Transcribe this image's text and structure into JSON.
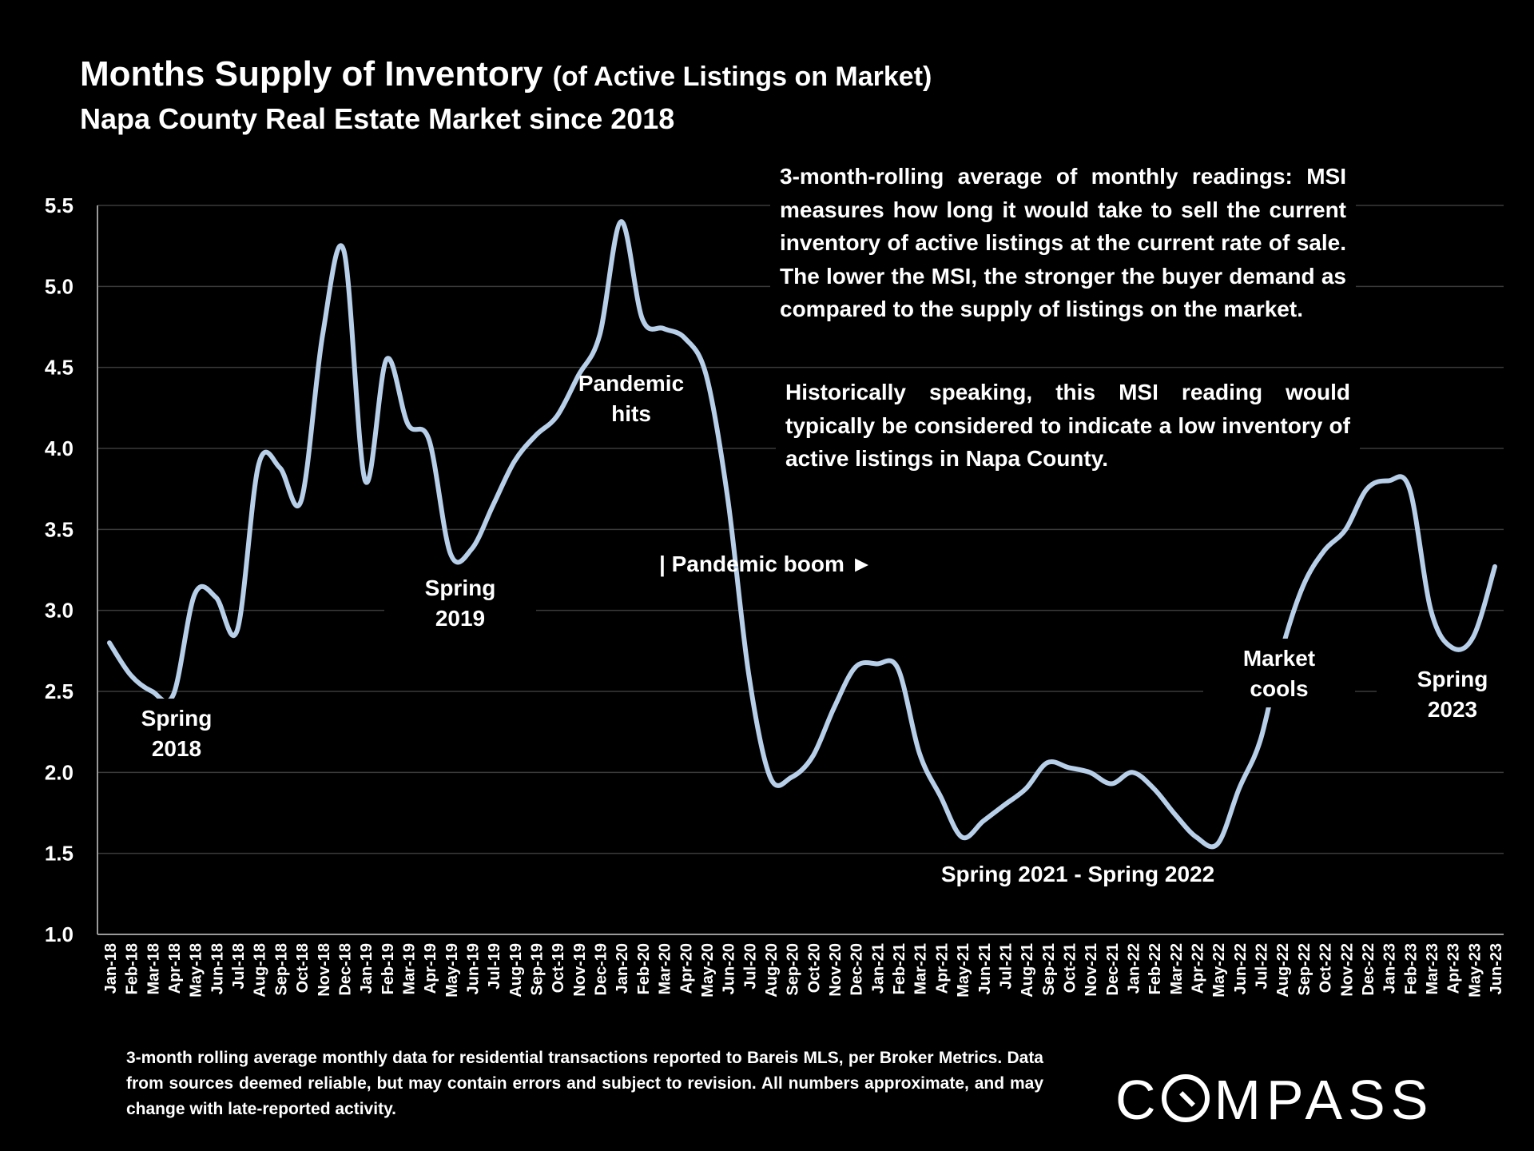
{
  "header": {
    "title_main": "Months Supply of Inventory",
    "title_paren": "(of Active Listings on Market)",
    "subtitle": "Napa County Real Estate Market since 2018"
  },
  "notes": {
    "note1": "3-month-rolling average of monthly readings: MSI measures how long it would take to sell the current inventory of active listings at the current rate of sale. The lower the MSI, the stronger the buyer demand as compared to the supply of listings on the market.",
    "note2": "Historically speaking, this MSI reading would typically be considered to indicate a low inventory of active listings in Napa County."
  },
  "footer": {
    "text": "3-month rolling average monthly data for residential transactions reported to Bareis MLS, per Broker Metrics. Data from sources deemed reliable, but may contain errors and subject to revision. All numbers approximate, and may change with late-reported activity.",
    "logo": "COMPASS"
  },
  "colors": {
    "line": "#b7cfe9",
    "grid": "#3a3a3a",
    "axis": "#9a9a9a",
    "background": "#000000"
  },
  "chart_data": {
    "type": "line",
    "title": "Months Supply of Inventory (of Active Listings on Market)",
    "subtitle": "Napa County Real Estate Market since 2018",
    "xlabel": "",
    "ylabel": "",
    "ylim": [
      1.0,
      5.5
    ],
    "yticks": [
      "1.0",
      "1.5",
      "2.0",
      "2.5",
      "3.0",
      "3.5",
      "4.0",
      "4.5",
      "5.0",
      "5.5"
    ],
    "grid": true,
    "categories": [
      "Jan-18",
      "Feb-18",
      "Mar-18",
      "Apr-18",
      "May-18",
      "Jun-18",
      "Jul-18",
      "Aug-18",
      "Sep-18",
      "Oct-18",
      "Nov-18",
      "Dec-18",
      "Jan-19",
      "Feb-19",
      "Mar-19",
      "Apr-19",
      "May-19",
      "Jun-19",
      "Jul-19",
      "Aug-19",
      "Sep-19",
      "Oct-19",
      "Nov-19",
      "Dec-19",
      "Jan-20",
      "Feb-20",
      "Mar-20",
      "Apr-20",
      "May-20",
      "Jun-20",
      "Jul-20",
      "Aug-20",
      "Sep-20",
      "Oct-20",
      "Nov-20",
      "Dec-20",
      "Jan-21",
      "Feb-21",
      "Mar-21",
      "Apr-21",
      "May-21",
      "Jun-21",
      "Jul-21",
      "Aug-21",
      "Sep-21",
      "Oct-21",
      "Nov-21",
      "Dec-21",
      "Jan-22",
      "Feb-22",
      "Mar-22",
      "Apr-22",
      "May-22",
      "Jun-22",
      "Jul-22",
      "Aug-22",
      "Sep-22",
      "Oct-22",
      "Nov-22",
      "Dec-22",
      "Jan-23",
      "Feb-23",
      "Mar-23",
      "Apr-23",
      "May-23",
      "Jun-23"
    ],
    "series": [
      {
        "name": "MSI (3-month rolling average)",
        "values": [
          2.8,
          2.6,
          2.5,
          2.48,
          3.1,
          3.08,
          2.88,
          3.9,
          3.88,
          3.68,
          4.7,
          5.22,
          3.8,
          4.55,
          4.15,
          4.05,
          3.35,
          3.38,
          3.65,
          3.92,
          4.08,
          4.2,
          4.45,
          4.7,
          5.4,
          4.8,
          4.74,
          4.68,
          4.45,
          3.7,
          2.6,
          1.97,
          1.97,
          2.1,
          2.4,
          2.65,
          2.67,
          2.64,
          2.12,
          1.85,
          1.6,
          1.7,
          1.8,
          1.9,
          2.06,
          2.03,
          2.0,
          1.93,
          2.0,
          1.9,
          1.74,
          1.6,
          1.56,
          1.9,
          2.2,
          2.75,
          3.15,
          3.37,
          3.5,
          3.75,
          3.8,
          3.75,
          3.0,
          2.77,
          2.84,
          3.27
        ]
      }
    ],
    "annotations": [
      {
        "text": [
          "Spring",
          "2018"
        ],
        "at": "Apr-18"
      },
      {
        "text": [
          "Spring",
          "2019"
        ],
        "at": "Jun-19"
      },
      {
        "text": [
          "Pandemic",
          "hits"
        ],
        "at": "Feb-20"
      },
      {
        "text": [
          "| Pandemic boom ►"
        ],
        "at": "Jun-20"
      },
      {
        "text": [
          "Spring 2021 - Spring 2022"
        ],
        "at": "Dec-21"
      },
      {
        "text": [
          "Market",
          "cools"
        ],
        "at": "Aug-22"
      },
      {
        "text": [
          "Spring",
          "2023"
        ],
        "at": "May-23"
      }
    ]
  }
}
